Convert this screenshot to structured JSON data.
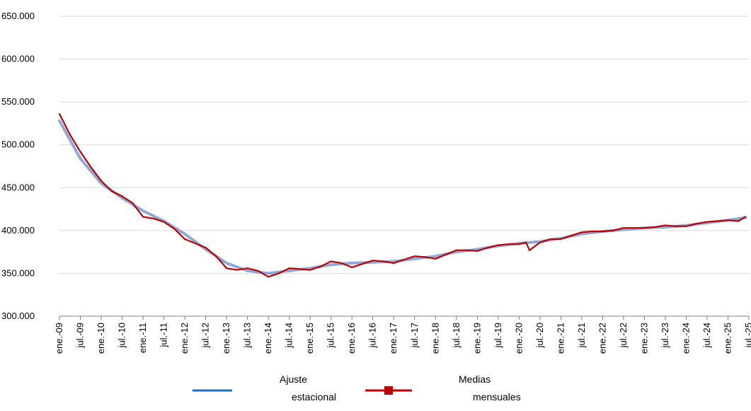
{
  "chart_data": {
    "type": "line",
    "ylim": [
      300000,
      650000
    ],
    "y_ticks": [
      {
        "value": 300000,
        "label": "300.000"
      },
      {
        "value": 350000,
        "label": "350.000"
      },
      {
        "value": 400000,
        "label": "400.000"
      },
      {
        "value": 450000,
        "label": "450.000"
      },
      {
        "value": 500000,
        "label": "500.000"
      },
      {
        "value": 550000,
        "label": "550.000"
      },
      {
        "value": 600000,
        "label": "600.000"
      },
      {
        "value": 650000,
        "label": "650.000"
      }
    ],
    "x_ticks": [
      "ene.-09",
      "jul.-09",
      "ene.-10",
      "jul.-10",
      "ene.-11",
      "jul.-11",
      "ene.-12",
      "jul.-12",
      "ene.-13",
      "jul.-13",
      "ene.-14",
      "jul.-14",
      "ene.-15",
      "jul.-15",
      "ene.-16",
      "jul.-16",
      "ene.-17",
      "jul.-17",
      "ene.-18",
      "jul.-18",
      "ene.-19",
      "jul.-19",
      "ene.-20",
      "jul.-20",
      "ene.-21",
      "jul.-21",
      "ene.-22",
      "jul.-22",
      "ene.-23",
      "jul.-23",
      "ene.-24",
      "jul.-24",
      "ene.-25",
      "jul.-25"
    ],
    "grid": true,
    "legend_position": "bottom",
    "series": [
      {
        "name": "Ajuste estacional",
        "color": "#8ea9d8",
        "x": [
          "2009-01",
          "2009-07",
          "2010-01",
          "2010-07",
          "2011-01",
          "2011-07",
          "2012-01",
          "2012-07",
          "2013-01",
          "2013-07",
          "2014-01",
          "2014-07",
          "2015-01",
          "2015-07",
          "2016-01",
          "2016-07",
          "2017-01",
          "2017-07",
          "2018-01",
          "2018-07",
          "2019-01",
          "2019-07",
          "2020-01",
          "2020-07",
          "2021-01",
          "2021-07",
          "2022-01",
          "2022-07",
          "2023-01",
          "2023-07",
          "2024-01",
          "2024-07",
          "2025-01",
          "2025-06"
        ],
        "y": [
          528000,
          484000,
          455000,
          438000,
          423000,
          411000,
          396000,
          378000,
          362000,
          353000,
          350000,
          353000,
          356000,
          360000,
          362000,
          363000,
          364000,
          367000,
          370000,
          375000,
          378000,
          382000,
          385000,
          387000,
          391000,
          396000,
          399000,
          401000,
          403000,
          404000,
          406000,
          409000,
          412000,
          415000
        ]
      },
      {
        "name": "Medias mensuales",
        "color": "#c00000",
        "x": [
          "2009-01",
          "2009-04",
          "2009-07",
          "2009-10",
          "2010-01",
          "2010-04",
          "2010-07",
          "2010-10",
          "2011-01",
          "2011-04",
          "2011-07",
          "2011-10",
          "2012-01",
          "2012-04",
          "2012-07",
          "2012-10",
          "2013-01",
          "2013-04",
          "2013-07",
          "2013-10",
          "2014-01",
          "2014-04",
          "2014-07",
          "2014-10",
          "2015-01",
          "2015-04",
          "2015-07",
          "2015-10",
          "2016-01",
          "2016-04",
          "2016-07",
          "2016-10",
          "2017-01",
          "2017-04",
          "2017-07",
          "2017-10",
          "2018-01",
          "2018-04",
          "2018-07",
          "2018-10",
          "2019-01",
          "2019-04",
          "2019-07",
          "2019-10",
          "2020-01",
          "2020-03",
          "2020-04",
          "2020-07",
          "2020-10",
          "2021-01",
          "2021-04",
          "2021-07",
          "2021-10",
          "2022-01",
          "2022-04",
          "2022-07",
          "2022-10",
          "2023-01",
          "2023-04",
          "2023-07",
          "2023-10",
          "2024-01",
          "2024-04",
          "2024-07",
          "2024-10",
          "2025-01",
          "2025-04",
          "2025-06"
        ],
        "y": [
          536000,
          512000,
          492000,
          474000,
          458000,
          446000,
          440000,
          432000,
          416000,
          414000,
          410000,
          402000,
          390000,
          385000,
          380000,
          370000,
          356000,
          354000,
          356000,
          353000,
          346000,
          350000,
          356000,
          355000,
          354000,
          358000,
          364000,
          362000,
          357000,
          361000,
          365000,
          364000,
          362000,
          366000,
          370000,
          369000,
          367000,
          372000,
          377000,
          377000,
          376000,
          380000,
          383000,
          384000,
          384000,
          386000,
          377000,
          386000,
          390000,
          390000,
          394000,
          398000,
          399000,
          399000,
          400000,
          403000,
          403000,
          403000,
          404000,
          406000,
          405000,
          405000,
          408000,
          410000,
          411000,
          412000,
          411000,
          416000
        ]
      }
    ]
  },
  "legend": {
    "items": [
      {
        "line1": "Ajuste",
        "line2": "estacional"
      },
      {
        "line1": "Medias",
        "line2": "mensuales"
      }
    ]
  }
}
